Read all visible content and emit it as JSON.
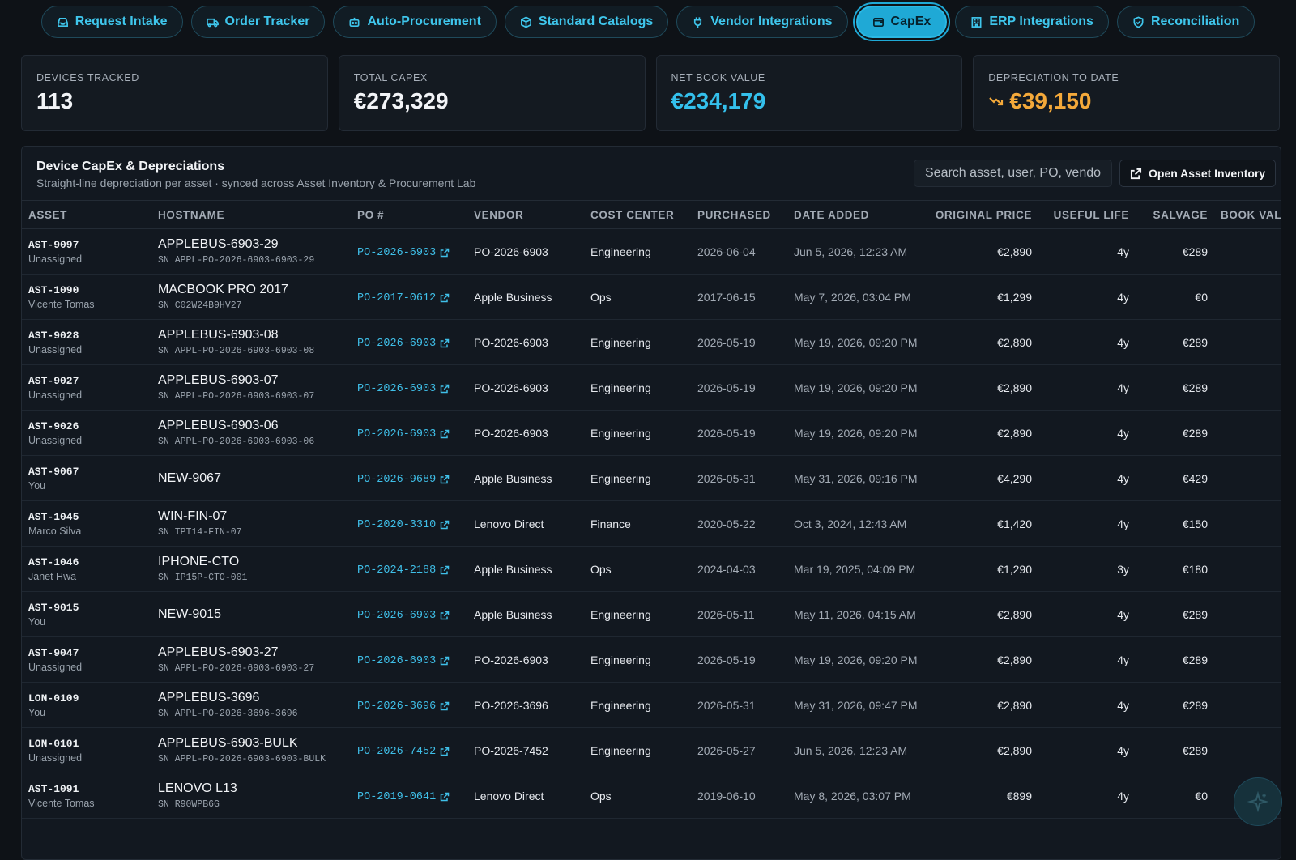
{
  "tabs": [
    {
      "label": "Request Intake",
      "icon": "inbox-icon"
    },
    {
      "label": "Order Tracker",
      "icon": "truck-icon"
    },
    {
      "label": "Auto-Procurement",
      "icon": "robot-icon"
    },
    {
      "label": "Standard Catalogs",
      "icon": "box-icon"
    },
    {
      "label": "Vendor Integrations",
      "icon": "plug-icon"
    },
    {
      "label": "CapEx",
      "icon": "wallet-icon",
      "active": true
    },
    {
      "label": "ERP Integrations",
      "icon": "building-icon"
    },
    {
      "label": "Reconciliation",
      "icon": "shield-check-icon"
    }
  ],
  "stats": {
    "devices_tracked": {
      "label": "DEVICES TRACKED",
      "value": "113"
    },
    "total_capex": {
      "label": "TOTAL CAPEX",
      "value": "€273,329"
    },
    "net_book_value": {
      "label": "NET BOOK VALUE",
      "value": "€234,179"
    },
    "depreciation": {
      "label": "DEPRECIATION TO DATE",
      "value": "€39,150",
      "icon": "trend-down-icon"
    }
  },
  "panel": {
    "title": "Device CapEx & Depreciations",
    "subtitle": "Straight-line depreciation per asset · synced across Asset Inventory & Procurement Lab",
    "search_placeholder": "Search asset, user, PO, vendor",
    "open_button": "Open Asset Inventory"
  },
  "columns": [
    "ASSET",
    "HOSTNAME",
    "PO #",
    "VENDOR",
    "COST CENTER",
    "PURCHASED",
    "DATE ADDED",
    "ORIGINAL PRICE",
    "USEFUL LIFE",
    "SALVAGE",
    "BOOK VALUE"
  ],
  "rows": [
    {
      "asset": "AST-9097",
      "user": "Unassigned",
      "host": "APPLEBUS-6903-29",
      "sn": "SN APPL-PO-2026-6903-6903-29",
      "po": "PO-2026-6903",
      "vendor": "PO-2026-6903",
      "cost_center": "Engineering",
      "purchased": "2026-06-04",
      "added": "Jun 5, 2026, 12:23 AM",
      "price": "€2,890",
      "life": "4y",
      "salvage": "€289"
    },
    {
      "asset": "AST-1090",
      "user": "Vicente Tomas",
      "host": "MACBOOK PRO 2017",
      "sn": "SN C02W24B9HV27",
      "po": "PO-2017-0612",
      "vendor": "Apple Business",
      "cost_center": "Ops",
      "purchased": "2017-06-15",
      "added": "May 7, 2026, 03:04 PM",
      "price": "€1,299",
      "life": "4y",
      "salvage": "€0"
    },
    {
      "asset": "AST-9028",
      "user": "Unassigned",
      "host": "APPLEBUS-6903-08",
      "sn": "SN APPL-PO-2026-6903-6903-08",
      "po": "PO-2026-6903",
      "vendor": "PO-2026-6903",
      "cost_center": "Engineering",
      "purchased": "2026-05-19",
      "added": "May 19, 2026, 09:20 PM",
      "price": "€2,890",
      "life": "4y",
      "salvage": "€289"
    },
    {
      "asset": "AST-9027",
      "user": "Unassigned",
      "host": "APPLEBUS-6903-07",
      "sn": "SN APPL-PO-2026-6903-6903-07",
      "po": "PO-2026-6903",
      "vendor": "PO-2026-6903",
      "cost_center": "Engineering",
      "purchased": "2026-05-19",
      "added": "May 19, 2026, 09:20 PM",
      "price": "€2,890",
      "life": "4y",
      "salvage": "€289"
    },
    {
      "asset": "AST-9026",
      "user": "Unassigned",
      "host": "APPLEBUS-6903-06",
      "sn": "SN APPL-PO-2026-6903-6903-06",
      "po": "PO-2026-6903",
      "vendor": "PO-2026-6903",
      "cost_center": "Engineering",
      "purchased": "2026-05-19",
      "added": "May 19, 2026, 09:20 PM",
      "price": "€2,890",
      "life": "4y",
      "salvage": "€289"
    },
    {
      "asset": "AST-9067",
      "user": "You",
      "host": "NEW-9067",
      "sn": "",
      "po": "PO-2026-9689",
      "vendor": "Apple Business",
      "cost_center": "Engineering",
      "purchased": "2026-05-31",
      "added": "May 31, 2026, 09:16 PM",
      "price": "€4,290",
      "life": "4y",
      "salvage": "€429"
    },
    {
      "asset": "AST-1045",
      "user": "Marco Silva",
      "host": "WIN-FIN-07",
      "sn": "SN TPT14-FIN-07",
      "po": "PO-2020-3310",
      "vendor": "Lenovo Direct",
      "cost_center": "Finance",
      "purchased": "2020-05-22",
      "added": "Oct 3, 2024, 12:43 AM",
      "price": "€1,420",
      "life": "4y",
      "salvage": "€150"
    },
    {
      "asset": "AST-1046",
      "user": "Janet Hwa",
      "host": "IPHONE-CTO",
      "sn": "SN IP15P-CTO-001",
      "po": "PO-2024-2188",
      "vendor": "Apple Business",
      "cost_center": "Ops",
      "purchased": "2024-04-03",
      "added": "Mar 19, 2025, 04:09 PM",
      "price": "€1,290",
      "life": "3y",
      "salvage": "€180"
    },
    {
      "asset": "AST-9015",
      "user": "You",
      "host": "NEW-9015",
      "sn": "",
      "po": "PO-2026-6903",
      "vendor": "Apple Business",
      "cost_center": "Engineering",
      "purchased": "2026-05-11",
      "added": "May 11, 2026, 04:15 AM",
      "price": "€2,890",
      "life": "4y",
      "salvage": "€289"
    },
    {
      "asset": "AST-9047",
      "user": "Unassigned",
      "host": "APPLEBUS-6903-27",
      "sn": "SN APPL-PO-2026-6903-6903-27",
      "po": "PO-2026-6903",
      "vendor": "PO-2026-6903",
      "cost_center": "Engineering",
      "purchased": "2026-05-19",
      "added": "May 19, 2026, 09:20 PM",
      "price": "€2,890",
      "life": "4y",
      "salvage": "€289"
    },
    {
      "asset": "LON-0109",
      "user": "You",
      "host": "APPLEBUS-3696",
      "sn": "SN APPL-PO-2026-3696-3696",
      "po": "PO-2026-3696",
      "vendor": "PO-2026-3696",
      "cost_center": "Engineering",
      "purchased": "2026-05-31",
      "added": "May 31, 2026, 09:47 PM",
      "price": "€2,890",
      "life": "4y",
      "salvage": "€289"
    },
    {
      "asset": "LON-0101",
      "user": "Unassigned",
      "host": "APPLEBUS-6903-BULK",
      "sn": "SN APPL-PO-2026-6903-6903-BULK",
      "po": "PO-2026-7452",
      "vendor": "PO-2026-7452",
      "cost_center": "Engineering",
      "purchased": "2026-05-27",
      "added": "Jun 5, 2026, 12:23 AM",
      "price": "€2,890",
      "life": "4y",
      "salvage": "€289"
    },
    {
      "asset": "AST-1091",
      "user": "Vicente Tomas",
      "host": "LENOVO L13",
      "sn": "SN R90WPB6G",
      "po": "PO-2019-0641",
      "vendor": "Lenovo Direct",
      "cost_center": "Ops",
      "purchased": "2019-06-10",
      "added": "May 8, 2026, 03:07 PM",
      "price": "€899",
      "life": "4y",
      "salvage": "€0"
    }
  ],
  "fab": {
    "icon": "sparkle-icon"
  }
}
